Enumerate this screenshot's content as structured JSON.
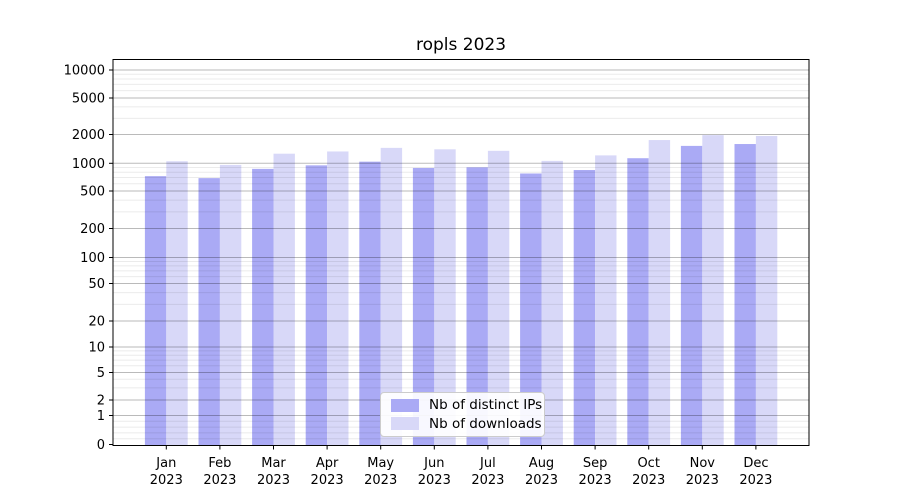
{
  "chart_data": {
    "type": "bar",
    "title": "ropls 2023",
    "categories": [
      "Jan",
      "Feb",
      "Mar",
      "Apr",
      "May",
      "Jun",
      "Jul",
      "Aug",
      "Sep",
      "Oct",
      "Nov",
      "Dec"
    ],
    "x_year_label": "2023",
    "series": [
      {
        "name": "Nb of distinct IPs",
        "color": "#aaaaf5",
        "values": [
          725,
          690,
          870,
          950,
          1040,
          890,
          905,
          775,
          845,
          1130,
          1520,
          1590
        ]
      },
      {
        "name": "Nb of downloads",
        "color": "#d8d8f8",
        "values": [
          1050,
          960,
          1260,
          1330,
          1450,
          1400,
          1350,
          1060,
          1210,
          1750,
          1970,
          1930
        ]
      }
    ],
    "yscale": "symlog",
    "yticks": [
      0,
      1,
      2,
      5,
      10,
      20,
      50,
      100,
      200,
      500,
      1000,
      2000,
      5000,
      10000
    ],
    "ylim": [
      0,
      12000
    ],
    "xlabel": "",
    "ylabel": "",
    "grid": true,
    "legend_position": "lower center"
  }
}
